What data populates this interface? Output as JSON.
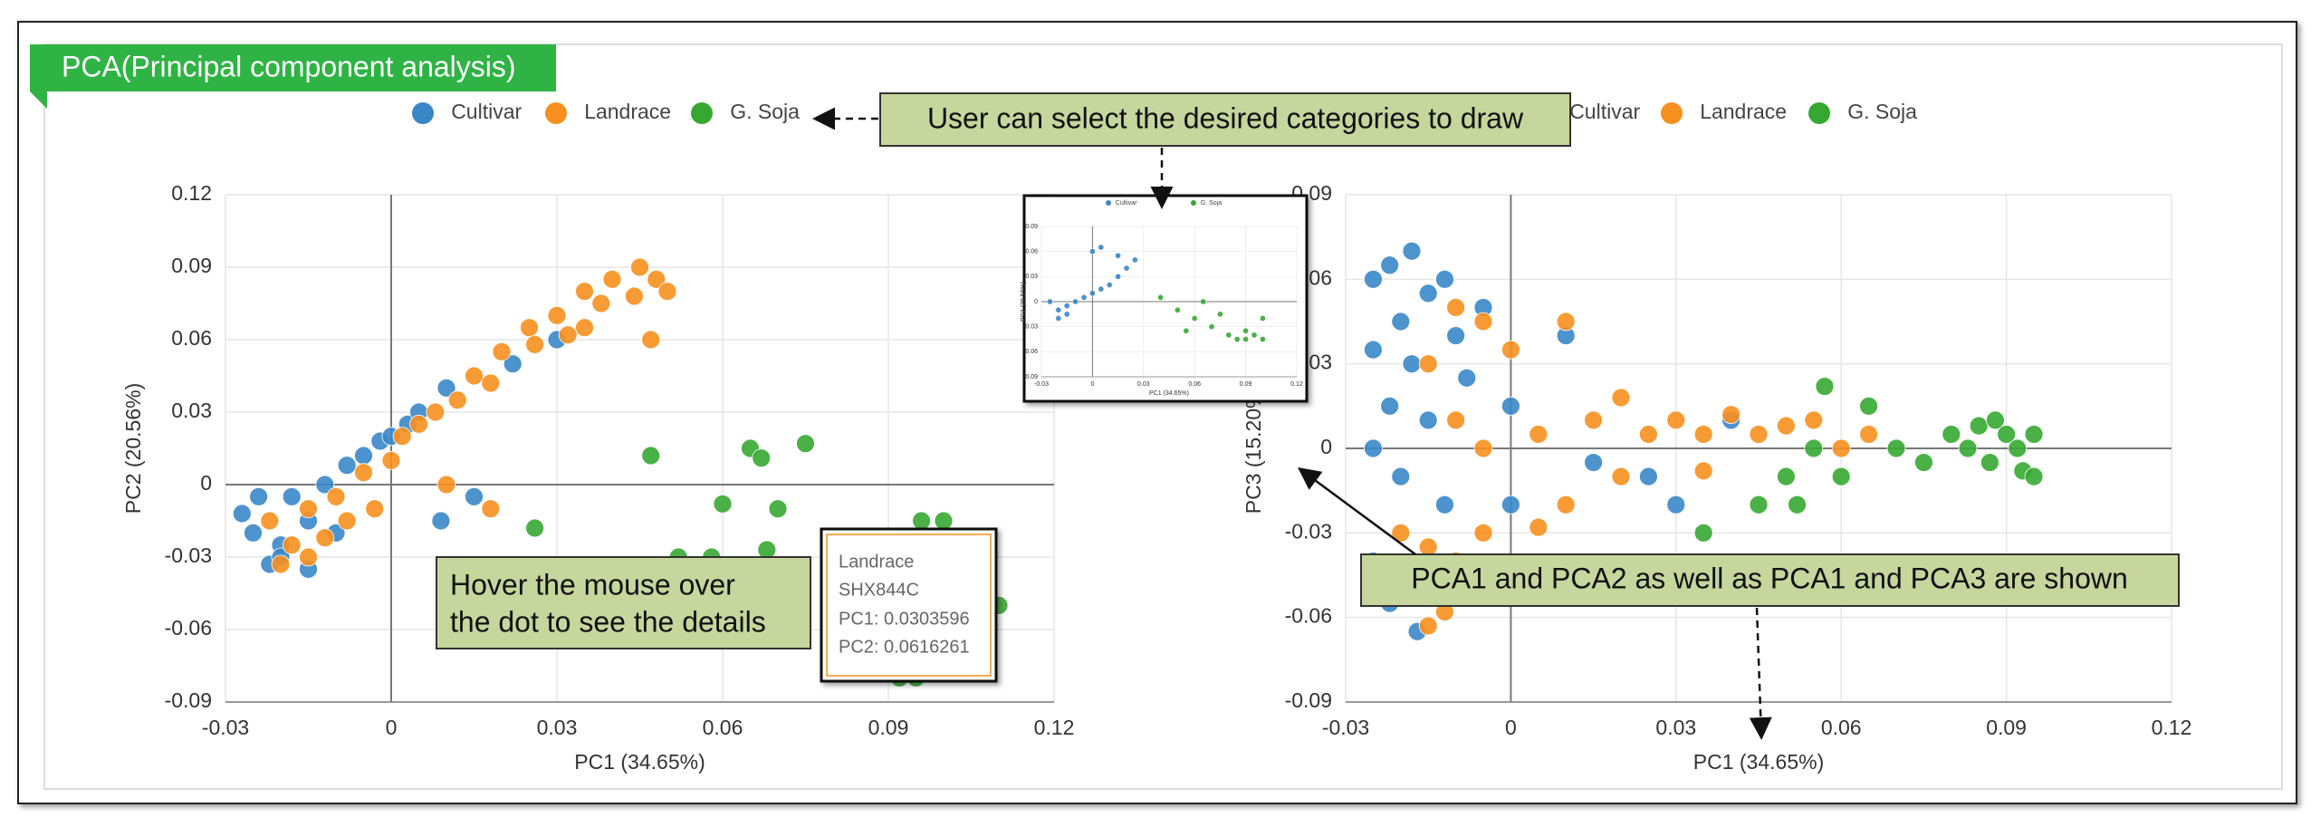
{
  "header": {
    "title": "PCA(Principal component analysis)"
  },
  "chart_data": [
    {
      "type": "scatter",
      "xlabel": "PC1 (34.65%)",
      "ylabel": "PC2 (20.56%)",
      "xlim": [
        -0.03,
        0.12
      ],
      "ylim": [
        -0.09,
        0.12
      ],
      "xticks": [
        -0.03,
        0,
        0.03,
        0.06,
        0.09,
        0.12
      ],
      "yticks": [
        -0.09,
        -0.06,
        -0.03,
        0,
        0.03,
        0.06,
        0.09,
        0.12
      ],
      "grid": true,
      "series": [
        {
          "name": "Cultivar",
          "color": "#3a87c8",
          "x": [
            -0.027,
            -0.025,
            -0.022,
            -0.02,
            -0.018,
            -0.015,
            -0.012,
            -0.01,
            -0.008,
            -0.005,
            -0.002,
            0.0,
            0.003,
            0.005,
            0.01,
            0.015,
            0.022,
            0.03,
            -0.02,
            -0.015,
            0.009,
            -0.024
          ],
          "values": [
            -0.012,
            -0.02,
            -0.033,
            -0.025,
            -0.005,
            -0.015,
            0.0,
            -0.02,
            0.008,
            0.012,
            0.018,
            0.02,
            0.025,
            0.03,
            0.04,
            -0.005,
            0.05,
            0.06,
            -0.03,
            -0.035,
            -0.015,
            -0.005
          ]
        },
        {
          "name": "Landrace",
          "color": "#f7901e",
          "x": [
            -0.022,
            -0.018,
            -0.015,
            -0.012,
            -0.01,
            -0.008,
            -0.005,
            -0.003,
            0.0,
            0.002,
            0.005,
            0.008,
            0.012,
            0.015,
            0.02,
            0.025,
            0.03,
            0.035,
            0.04,
            0.045,
            0.048,
            0.05,
            0.044,
            0.038,
            0.032,
            0.026,
            0.018,
            0.01,
            0.018,
            0.035,
            0.047,
            -0.02,
            -0.015
          ],
          "values": [
            -0.015,
            -0.025,
            -0.01,
            -0.022,
            -0.005,
            -0.015,
            0.005,
            -0.01,
            0.01,
            0.02,
            0.025,
            0.03,
            0.035,
            0.045,
            0.055,
            0.065,
            0.07,
            0.08,
            0.085,
            0.09,
            0.085,
            0.08,
            0.078,
            0.075,
            0.062,
            0.058,
            0.042,
            0.0,
            -0.01,
            0.065,
            0.06,
            -0.033,
            -0.03
          ]
        },
        {
          "name": "G. Soja",
          "color": "#36a832",
          "x": [
            0.047,
            0.065,
            0.075,
            0.067,
            0.06,
            0.07,
            0.052,
            0.058,
            0.068,
            0.096,
            0.1,
            0.026,
            0.095,
            0.092,
            0.11
          ],
          "values": [
            0.012,
            0.015,
            0.017,
            0.011,
            -0.008,
            -0.01,
            -0.03,
            -0.03,
            -0.027,
            -0.015,
            -0.015,
            -0.018,
            -0.08,
            -0.08,
            -0.05
          ]
        }
      ]
    },
    {
      "type": "scatter",
      "xlabel": "PC1 (34.65%)",
      "ylabel": "PC3 (15.20%)",
      "xlim": [
        -0.03,
        0.12
      ],
      "ylim": [
        -0.09,
        0.09
      ],
      "xticks": [
        -0.03,
        0,
        0.03,
        0.06,
        0.09,
        0.12
      ],
      "yticks": [
        -0.09,
        -0.06,
        -0.03,
        0,
        0.03,
        0.06,
        0.09
      ],
      "grid": true,
      "series": [
        {
          "name": "Cultivar",
          "color": "#3a87c8",
          "x": [
            -0.025,
            -0.022,
            -0.018,
            -0.015,
            -0.012,
            -0.02,
            -0.025,
            -0.018,
            -0.01,
            -0.005,
            -0.008,
            -0.022,
            -0.015,
            -0.025,
            -0.02,
            -0.012,
            -0.025,
            -0.022,
            -0.017,
            0.0,
            0.01,
            0.015,
            0.025,
            0.04,
            0.03,
            0.0
          ],
          "values": [
            0.06,
            0.065,
            0.07,
            0.055,
            0.06,
            0.045,
            0.035,
            0.03,
            0.04,
            0.05,
            0.025,
            0.015,
            0.01,
            0.0,
            -0.01,
            -0.02,
            -0.04,
            -0.055,
            -0.065,
            0.015,
            0.04,
            -0.005,
            -0.01,
            0.01,
            -0.02,
            -0.02
          ]
        },
        {
          "name": "Landrace",
          "color": "#f7901e",
          "x": [
            -0.01,
            -0.005,
            0.0,
            0.01,
            -0.015,
            -0.02,
            -0.015,
            -0.01,
            -0.005,
            -0.018,
            -0.012,
            -0.015,
            -0.005,
            0.005,
            0.015,
            0.02,
            0.025,
            0.03,
            0.035,
            0.04,
            0.045,
            0.05,
            0.055,
            0.06,
            0.065,
            0.01,
            0.02,
            0.035,
            0.005,
            -0.01
          ],
          "values": [
            0.05,
            0.045,
            0.035,
            0.045,
            0.03,
            -0.03,
            -0.035,
            -0.04,
            -0.03,
            -0.05,
            -0.058,
            -0.063,
            0.0,
            0.005,
            0.01,
            0.018,
            0.005,
            0.01,
            0.005,
            0.012,
            0.005,
            0.008,
            0.01,
            0.0,
            0.005,
            -0.02,
            -0.01,
            -0.008,
            -0.028,
            0.01
          ]
        },
        {
          "name": "G. Soja",
          "color": "#36a832",
          "x": [
            0.055,
            0.06,
            0.065,
            0.07,
            0.075,
            0.08,
            0.085,
            0.088,
            0.09,
            0.092,
            0.095,
            0.083,
            0.087,
            0.093,
            0.057,
            0.05,
            0.052,
            0.045,
            0.035,
            0.095
          ],
          "values": [
            0.0,
            -0.01,
            0.015,
            0.0,
            -0.005,
            0.005,
            0.008,
            0.01,
            0.005,
            0.0,
            0.005,
            0.0,
            -0.005,
            -0.008,
            0.022,
            -0.01,
            -0.02,
            -0.02,
            -0.03,
            -0.01
          ]
        }
      ]
    },
    {
      "type": "scatter",
      "xlabel": "PC1 (34.65%)",
      "ylabel": "PC2 (20.56%)",
      "xlim": [
        -0.03,
        0.12
      ],
      "ylim": [
        -0.09,
        0.09
      ],
      "xticks": [
        -0.03,
        0,
        0.03,
        0.06,
        0.09,
        0.12
      ],
      "yticks": [
        -0.09,
        -0.06,
        -0.03,
        0,
        0.03,
        0.06,
        0.09
      ],
      "grid": true,
      "series": [
        {
          "name": "Cultivar",
          "color": "#3a87c8",
          "x": [
            -0.02,
            -0.015,
            -0.01,
            -0.005,
            0.0,
            0.005,
            0.01,
            0.015,
            0.02,
            0.025,
            -0.02,
            -0.015,
            -0.025,
            0.0,
            0.005,
            0.015
          ],
          "values": [
            -0.01,
            -0.005,
            0.0,
            0.005,
            0.01,
            0.015,
            0.02,
            0.03,
            0.04,
            0.05,
            -0.02,
            -0.015,
            0.0,
            0.06,
            0.065,
            0.055
          ]
        },
        {
          "name": "G. Soja",
          "color": "#36a832",
          "x": [
            0.04,
            0.05,
            0.06,
            0.07,
            0.08,
            0.085,
            0.09,
            0.095,
            0.1,
            0.065,
            0.075,
            0.055,
            0.09,
            0.1
          ],
          "values": [
            0.005,
            -0.01,
            -0.02,
            -0.03,
            -0.04,
            -0.045,
            -0.045,
            -0.04,
            -0.02,
            0.0,
            -0.015,
            -0.035,
            -0.035,
            -0.045
          ]
        }
      ]
    }
  ],
  "annotations": [
    "User can select the desired categories to draw",
    [
      "Hover the mouse over",
      "the dot to see the details"
    ],
    "PCA1 and PCA2 as well as PCA1 and PCA3 are shown"
  ],
  "tooltip": [
    "Landrace",
    "SHX844C",
    "PC1: 0.0303596",
    "PC2: 0.0616261"
  ]
}
